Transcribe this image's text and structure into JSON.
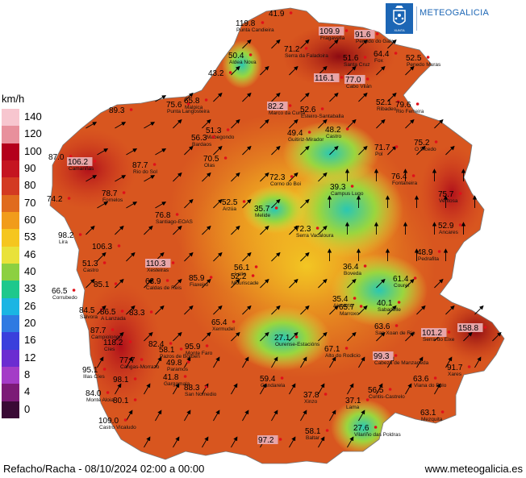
{
  "legend": {
    "unit": "km/h",
    "levels": [
      {
        "label": "140",
        "color": "#f7c6cf"
      },
      {
        "label": "120",
        "color": "#e8909c"
      },
      {
        "label": "100",
        "color": "#b4001c"
      },
      {
        "label": "90",
        "color": "#c51521"
      },
      {
        "label": "80",
        "color": "#d33a22"
      },
      {
        "label": "70",
        "color": "#e06b1e"
      },
      {
        "label": "60",
        "color": "#f19c1b"
      },
      {
        "label": "53",
        "color": "#f5c61f"
      },
      {
        "label": "46",
        "color": "#e9e23a"
      },
      {
        "label": "40",
        "color": "#8cd041"
      },
      {
        "label": "33",
        "color": "#1ec88c"
      },
      {
        "label": "26",
        "color": "#1ab5e3"
      },
      {
        "label": "20",
        "color": "#2f7ae2"
      },
      {
        "label": "16",
        "color": "#3a3fdc"
      },
      {
        "label": "12",
        "color": "#6b2cd1"
      },
      {
        "label": "8",
        "color": "#a43cc7"
      },
      {
        "label": "4",
        "color": "#7c1a77"
      },
      {
        "label": "0",
        "color": "#3a0a35"
      }
    ]
  },
  "logo": {
    "text": "METEOGALICIA",
    "color": "#1c66b5"
  },
  "footer": {
    "caption": "Refacho/Racha - 08/10/2024 02:00 a 00:00",
    "url": "www.meteogalicia.es"
  },
  "stations": [
    {
      "value": "119.8",
      "place": "Punta Candieira",
      "highlight": false
    },
    {
      "value": "41.9",
      "place": "",
      "highlight": false
    },
    {
      "value": "109.9",
      "place": "Fragavella",
      "highlight": true
    },
    {
      "value": "91.6",
      "place": "Penedo do Galo",
      "highlight": true
    },
    {
      "value": "71.2",
      "place": "Serra da Faladoira",
      "highlight": false
    },
    {
      "value": "50.4",
      "place": "Aldea Nova",
      "highlight": false
    },
    {
      "value": "64.4",
      "place": "Fox",
      "highlight": false
    },
    {
      "value": "52.5",
      "place": "Penedo Muras",
      "highlight": false
    },
    {
      "value": "51.6",
      "place": "Santa Cruz",
      "highlight": false
    },
    {
      "value": "43.2",
      "place": "",
      "highlight": false
    },
    {
      "value": "116.1",
      "place": "",
      "highlight": true
    },
    {
      "value": "77.0",
      "place": "Cabo Vilán",
      "highlight": true
    },
    {
      "value": "89.3",
      "place": "",
      "highlight": false
    },
    {
      "value": "75.6",
      "place": "Punta Langosteira",
      "highlight": false
    },
    {
      "value": "65.8",
      "place": "Malpica",
      "highlight": false
    },
    {
      "value": "82.2",
      "place": "Marco da Curra",
      "highlight": true
    },
    {
      "value": "52.6",
      "place": "Esteiro-Santaballa",
      "highlight": false
    },
    {
      "value": "52.1",
      "place": "Ribadeo",
      "highlight": false
    },
    {
      "value": "79.6",
      "place": "Rio Ferreira",
      "highlight": false
    },
    {
      "value": "51.3",
      "place": "Mabegondo",
      "highlight": false
    },
    {
      "value": "49.4",
      "place": "Guitiriz-Mirador",
      "highlight": false
    },
    {
      "value": "48.2",
      "place": "Castro",
      "highlight": false
    },
    {
      "value": "56.3",
      "place": "Bardaos",
      "highlight": false
    },
    {
      "value": "87.0",
      "place": "",
      "highlight": false
    },
    {
      "value": "106.2",
      "place": "Camariñas",
      "highlight": true
    },
    {
      "value": "71.7",
      "place": "Pol",
      "highlight": false
    },
    {
      "value": "75.2",
      "place": "O Vicedo",
      "highlight": false
    },
    {
      "value": "70.5",
      "place": "Olas",
      "highlight": false
    },
    {
      "value": "87.7",
      "place": "Rio do Sol",
      "highlight": false
    },
    {
      "value": "72.3",
      "place": "Corno do Boi",
      "highlight": false
    },
    {
      "value": "76.4",
      "place": "Fontaneira",
      "highlight": false
    },
    {
      "value": "74.2",
      "place": "",
      "highlight": false
    },
    {
      "value": "78.7",
      "place": "Fornelos",
      "highlight": false
    },
    {
      "value": "39.3",
      "place": "Campus Lugo",
      "highlight": false
    },
    {
      "value": "75.7",
      "place": "Ventosa",
      "highlight": false
    },
    {
      "value": "52.5",
      "place": "Arzúa",
      "highlight": false
    },
    {
      "value": "35.7",
      "place": "Melide",
      "highlight": false
    },
    {
      "value": "76.8",
      "place": "Santiago-EOAS",
      "highlight": false
    },
    {
      "value": "72.3",
      "place": "Serra Vacaloura",
      "highlight": false
    },
    {
      "value": "52.9",
      "place": "Ancares",
      "highlight": false
    },
    {
      "value": "98.2",
      "place": "Lira",
      "highlight": false
    },
    {
      "value": "106.3",
      "place": "",
      "highlight": false
    },
    {
      "value": "48.9",
      "place": "Pedrafita",
      "highlight": false
    },
    {
      "value": "51.3",
      "place": "Castro",
      "highlight": false
    },
    {
      "value": "110.3",
      "place": "Xesteiras",
      "highlight": true
    },
    {
      "value": "56.1",
      "place": "Lalín",
      "highlight": false
    },
    {
      "value": "36.4",
      "place": "Boveda",
      "highlight": false
    },
    {
      "value": "85.1",
      "place": "",
      "highlight": false
    },
    {
      "value": "63.9",
      "place": "Caldas de Reis",
      "highlight": false
    },
    {
      "value": "85.9",
      "place": "Fiaxeiro",
      "highlight": false
    },
    {
      "value": "52.2",
      "place": "Mouriscade",
      "highlight": false
    },
    {
      "value": "61.4",
      "place": "Courel",
      "highlight": false
    },
    {
      "value": "66.5",
      "place": "Corrubedo",
      "highlight": false
    },
    {
      "value": "35.4",
      "place": "Alenarte",
      "highlight": false
    },
    {
      "value": "65.7",
      "place": "Marroxo",
      "highlight": false
    },
    {
      "value": "40.1",
      "place": "Sabadelle",
      "highlight": false
    },
    {
      "value": "84.5",
      "place": "Sálvora",
      "highlight": false
    },
    {
      "value": "86.5",
      "place": "A Lanzada",
      "highlight": false
    },
    {
      "value": "83.3",
      "place": "",
      "highlight": false
    },
    {
      "value": "63.6",
      "place": "San Xoan de Río",
      "highlight": false
    },
    {
      "value": "87.7",
      "place": "Campiolongo",
      "highlight": false
    },
    {
      "value": "65.4",
      "place": "Xermudel",
      "highlight": false
    },
    {
      "value": "101.2",
      "place": "Serra do Eixe",
      "highlight": true
    },
    {
      "value": "158.8",
      "place": "",
      "highlight": true
    },
    {
      "value": "118.2",
      "place": "Cíes",
      "highlight": false
    },
    {
      "value": "82.4",
      "place": "",
      "highlight": false
    },
    {
      "value": "58.1",
      "place": "Pazos de Borben",
      "highlight": false
    },
    {
      "value": "95.9",
      "place": "Monte Faro",
      "highlight": false
    },
    {
      "value": "27.1",
      "place": "Ourense-Estacións",
      "highlight": false
    },
    {
      "value": "67.1",
      "place": "Alto do Rodicio",
      "highlight": false
    },
    {
      "value": "77.7",
      "place": "Cangas-Morrazo",
      "highlight": false
    },
    {
      "value": "49.8",
      "place": "Paramos",
      "highlight": false
    },
    {
      "value": "99.3",
      "place": "Cabeza de Manzaneda",
      "highlight": true
    },
    {
      "value": "95.1",
      "place": "Illas Cíes",
      "highlight": false
    },
    {
      "value": "98.1",
      "place": "",
      "highlight": false
    },
    {
      "value": "41.8",
      "place": "Gargamala",
      "highlight": false
    },
    {
      "value": "59.4",
      "place": "Gandarela",
      "highlight": false
    },
    {
      "value": "63.6",
      "place": "Viana do Bolo",
      "highlight": false
    },
    {
      "value": "91.7",
      "place": "Xares",
      "highlight": false
    },
    {
      "value": "88.3",
      "place": "San Nomedio",
      "highlight": false
    },
    {
      "value": "84.0",
      "place": "Monte Aloia",
      "highlight": false
    },
    {
      "value": "80.1",
      "place": "",
      "highlight": false
    },
    {
      "value": "37.8",
      "place": "Xinzo",
      "highlight": false
    },
    {
      "value": "37.1",
      "place": "Lama",
      "highlight": false
    },
    {
      "value": "56.5",
      "place": "Cuntis-Castrelo",
      "highlight": false
    },
    {
      "value": "109.0",
      "place": "Castro Vicaludo",
      "highlight": false
    },
    {
      "value": "63.1",
      "place": "Mezquita",
      "highlight": false
    },
    {
      "value": "27.6",
      "place": "Vilariño das Poldras",
      "highlight": false
    },
    {
      "value": "58.1",
      "place": "Baltar",
      "highlight": false
    },
    {
      "value": "97.2",
      "place": "",
      "highlight": true
    }
  ]
}
